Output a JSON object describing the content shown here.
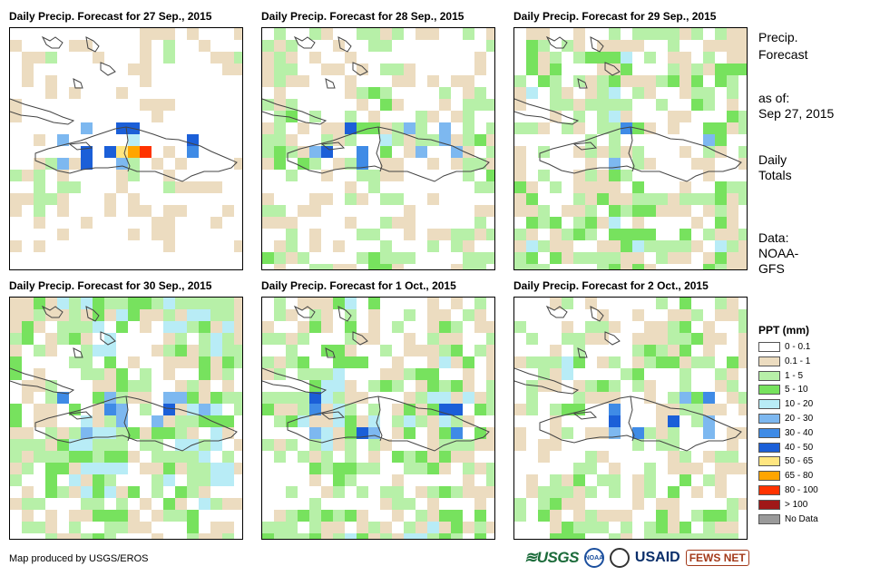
{
  "panels": [
    {
      "title": "Daily Precip. Forecast for 27 Sep., 2015"
    },
    {
      "title": "Daily Precip. Forecast for 28 Sep., 2015"
    },
    {
      "title": "Daily Precip. Forecast for 29 Sep., 2015"
    },
    {
      "title": "Daily Precip. Forecast for 30 Sep., 2015"
    },
    {
      "title": "Daily Precip. Forecast for 1 Oct., 2015"
    },
    {
      "title": "Daily Precip. Forecast for 2 Oct., 2015"
    }
  ],
  "side": {
    "heading_line1": "Precip.",
    "heading_line2": "Forecast",
    "asof_label": "as of:",
    "asof_date": "Sep 27, 2015",
    "totals_line1": "Daily",
    "totals_line2": "Totals",
    "data_label": "Data:",
    "data_src1": "NOAA-",
    "data_src2": "GFS"
  },
  "legend": {
    "title": "PPT (mm)",
    "items": [
      {
        "label": "0 - 0.1",
        "color": "#ffffff"
      },
      {
        "label": "0.1 - 1",
        "color": "#ecdcc0"
      },
      {
        "label": "1 - 5",
        "color": "#b7f0a8"
      },
      {
        "label": "5 - 10",
        "color": "#77e25e"
      },
      {
        "label": "10 - 20",
        "color": "#b8ecf6"
      },
      {
        "label": "20 - 30",
        "color": "#7db8f0"
      },
      {
        "label": "30 - 40",
        "color": "#3f8be6"
      },
      {
        "label": "40 - 50",
        "color": "#1b5fd8"
      },
      {
        "label": "50 - 65",
        "color": "#ffe680"
      },
      {
        "label": "65 - 80",
        "color": "#ffa500"
      },
      {
        "label": "80 - 100",
        "color": "#ff3300"
      },
      {
        "label": "> 100",
        "color": "#a01818"
      },
      {
        "label": "No Data",
        "color": "#9a9a9a"
      }
    ]
  },
  "footer": {
    "credit": "Map produced by USGS/EROS",
    "logo_usgs": "≋USGS",
    "logo_noaa": "NOAA",
    "logo_usaid": "USAID",
    "logo_fews": "FEWS NET"
  }
}
